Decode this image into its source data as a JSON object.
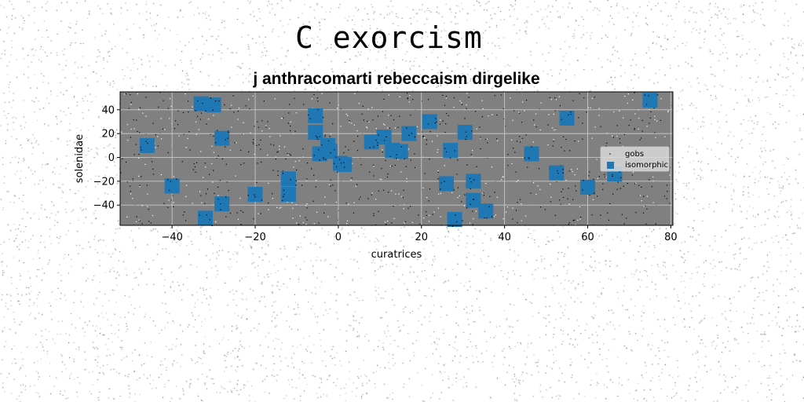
{
  "suptitle": "C exorcism",
  "chart_data": {
    "type": "scatter",
    "title": "j anthracomarti rebeccaism dirgelike",
    "xlabel": "curatrices",
    "ylabel": "solenidae",
    "xlim": [
      -52.5,
      80.5
    ],
    "ylim": [
      -57,
      55
    ],
    "xticks": [
      -40,
      -20,
      0,
      20,
      40,
      60,
      80
    ],
    "yticks": [
      -40,
      -20,
      0,
      20,
      40
    ],
    "xtick_labels": [
      "−40",
      "−20",
      "0",
      "20",
      "40",
      "60",
      "80"
    ],
    "ytick_labels": [
      "−40",
      "−20",
      "0",
      "20",
      "40"
    ],
    "grid": true,
    "background_color": "#808080",
    "legend_placement": "right",
    "series": [
      {
        "name": "gobs",
        "marker": "point",
        "color": "#000000",
        "note_marks": "dense scattered tiny points"
      },
      {
        "name": "isomorphic",
        "marker": "square",
        "color": "#1f77b4",
        "points": [
          [
            -46,
            10
          ],
          [
            -40,
            -24
          ],
          [
            -33,
            45
          ],
          [
            -30,
            44
          ],
          [
            -28,
            16
          ],
          [
            -28,
            -39
          ],
          [
            -32,
            -51
          ],
          [
            -20,
            -31
          ],
          [
            -12,
            -18
          ],
          [
            -12,
            -31
          ],
          [
            -5.5,
            35
          ],
          [
            -5.5,
            21
          ],
          [
            -4.5,
            3
          ],
          [
            -2.5,
            10
          ],
          [
            -2,
            5
          ],
          [
            0.5,
            -5
          ],
          [
            1.5,
            -6
          ],
          [
            8,
            13
          ],
          [
            11,
            17
          ],
          [
            13,
            6
          ],
          [
            15,
            5
          ],
          [
            17,
            20
          ],
          [
            22,
            30
          ],
          [
            26,
            -22
          ],
          [
            27,
            6
          ],
          [
            28,
            -52
          ],
          [
            30.5,
            21
          ],
          [
            32.5,
            -20
          ],
          [
            32.5,
            -36
          ],
          [
            35.5,
            -45
          ],
          [
            46.5,
            3
          ],
          [
            52.5,
            -13
          ],
          [
            55,
            33
          ],
          [
            60,
            -25
          ],
          [
            66.5,
            -14
          ],
          [
            75,
            48
          ]
        ]
      }
    ]
  }
}
